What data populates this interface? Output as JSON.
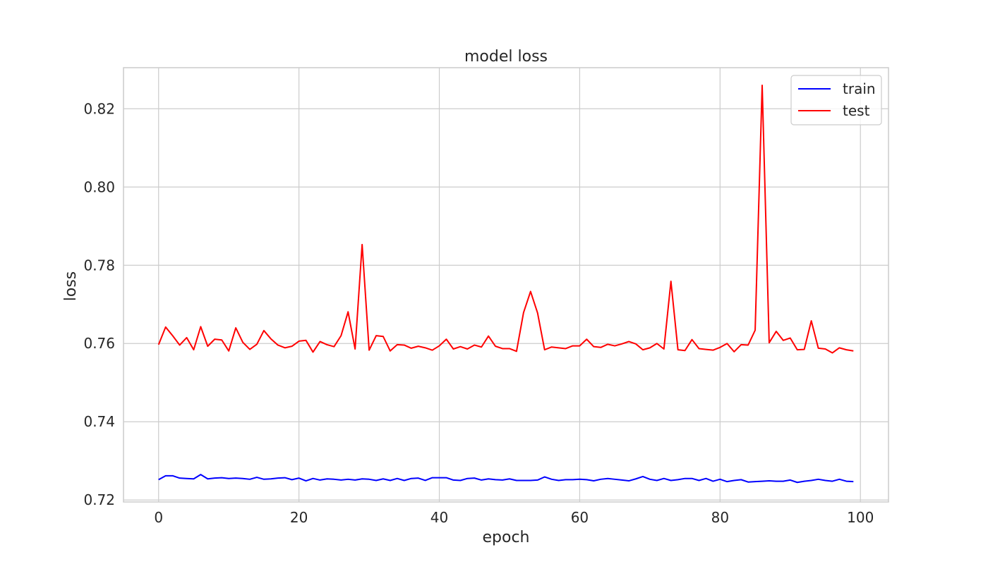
{
  "chart_data": {
    "type": "line",
    "title": "model loss",
    "xlabel": "epoch",
    "ylabel": "loss",
    "xlim": [
      -5,
      104
    ],
    "ylim": [
      0.7195,
      0.8305
    ],
    "xticks": [
      0,
      20,
      40,
      60,
      80,
      100
    ],
    "yticks": [
      0.72,
      0.74,
      0.76,
      0.78,
      0.8,
      0.82
    ],
    "ytick_labels": [
      "0.72",
      "0.74",
      "0.76",
      "0.78",
      "0.80",
      "0.82"
    ],
    "grid": true,
    "legend_position": "top-right",
    "x": [
      0,
      1,
      2,
      3,
      4,
      5,
      6,
      7,
      8,
      9,
      10,
      11,
      12,
      13,
      14,
      15,
      16,
      17,
      18,
      19,
      20,
      21,
      22,
      23,
      24,
      25,
      26,
      27,
      28,
      29,
      30,
      31,
      32,
      33,
      34,
      35,
      36,
      37,
      38,
      39,
      40,
      41,
      42,
      43,
      44,
      45,
      46,
      47,
      48,
      49,
      50,
      51,
      52,
      53,
      54,
      55,
      56,
      57,
      58,
      59,
      60,
      61,
      62,
      63,
      64,
      65,
      66,
      67,
      68,
      69,
      70,
      71,
      72,
      73,
      74,
      75,
      76,
      77,
      78,
      79,
      80,
      81,
      82,
      83,
      84,
      85,
      86,
      87,
      88,
      89,
      90,
      91,
      92,
      93,
      94,
      95,
      96,
      97,
      98,
      99
    ],
    "series": [
      {
        "name": "train",
        "color": "#0000ff",
        "values": [
          0.7252,
          0.7262,
          0.7262,
          0.7256,
          0.7255,
          0.7254,
          0.7265,
          0.7254,
          0.7256,
          0.7257,
          0.7255,
          0.7256,
          0.7255,
          0.7253,
          0.7258,
          0.7253,
          0.7254,
          0.7256,
          0.7257,
          0.7252,
          0.7256,
          0.7249,
          0.7255,
          0.7251,
          0.7254,
          0.7253,
          0.7251,
          0.7253,
          0.7251,
          0.7254,
          0.7253,
          0.725,
          0.7254,
          0.725,
          0.7255,
          0.725,
          0.7255,
          0.7256,
          0.725,
          0.7257,
          0.7257,
          0.7257,
          0.7251,
          0.725,
          0.7255,
          0.7256,
          0.7251,
          0.7254,
          0.7252,
          0.7251,
          0.7254,
          0.725,
          0.725,
          0.725,
          0.7251,
          0.7259,
          0.7253,
          0.725,
          0.7252,
          0.7252,
          0.7253,
          0.7252,
          0.7249,
          0.7253,
          0.7255,
          0.7253,
          0.7251,
          0.7249,
          0.7254,
          0.726,
          0.7253,
          0.725,
          0.7255,
          0.725,
          0.7252,
          0.7255,
          0.7255,
          0.725,
          0.7255,
          0.7248,
          0.7253,
          0.7247,
          0.725,
          0.7252,
          0.7246,
          0.7247,
          0.7248,
          0.7249,
          0.7248,
          0.7248,
          0.7251,
          0.7245,
          0.7248,
          0.725,
          0.7253,
          0.725,
          0.7248,
          0.7253,
          0.7248,
          0.7247
        ]
      },
      {
        "name": "test",
        "color": "#ff0000",
        "values": [
          0.7597,
          0.7642,
          0.762,
          0.7596,
          0.7615,
          0.7584,
          0.7643,
          0.7593,
          0.7611,
          0.7609,
          0.7581,
          0.764,
          0.7603,
          0.7585,
          0.7598,
          0.7633,
          0.7612,
          0.7596,
          0.7589,
          0.7593,
          0.7606,
          0.7608,
          0.7578,
          0.7605,
          0.7597,
          0.7592,
          0.762,
          0.7681,
          0.7586,
          0.7853,
          0.7583,
          0.762,
          0.7618,
          0.7581,
          0.7597,
          0.7596,
          0.7588,
          0.7593,
          0.7589,
          0.7583,
          0.7594,
          0.7611,
          0.7586,
          0.7592,
          0.7586,
          0.7596,
          0.7591,
          0.7619,
          0.7593,
          0.7587,
          0.7587,
          0.758,
          0.7679,
          0.7733,
          0.7678,
          0.7584,
          0.7591,
          0.7589,
          0.7587,
          0.7594,
          0.7594,
          0.7611,
          0.7592,
          0.759,
          0.7598,
          0.7594,
          0.7599,
          0.7605,
          0.7599,
          0.7584,
          0.7589,
          0.76,
          0.7586,
          0.7759,
          0.7584,
          0.7582,
          0.761,
          0.7587,
          0.7585,
          0.7583,
          0.759,
          0.76,
          0.7579,
          0.7597,
          0.7596,
          0.7634,
          0.826,
          0.7602,
          0.7631,
          0.7608,
          0.7614,
          0.7584,
          0.7585,
          0.7658,
          0.7588,
          0.7586,
          0.7576,
          0.7589,
          0.7584,
          0.7581
        ]
      }
    ]
  }
}
